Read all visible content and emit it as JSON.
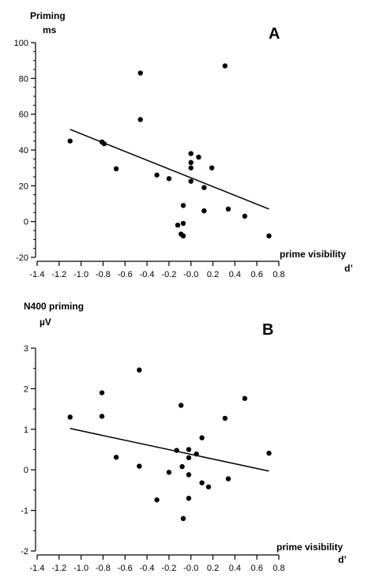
{
  "chart_data": [
    {
      "type": "scatter",
      "panel": "A",
      "ylabel_line1": "Priming",
      "ylabel_line2": "ms",
      "xlabel_line1": "prime visibility",
      "xlabel_line2": "d’",
      "xlim": [
        -1.4,
        0.8
      ],
      "ylim": [
        -20,
        100
      ],
      "xticks": [
        -1.4,
        -1.2,
        -1.0,
        -0.8,
        -0.6,
        -0.4,
        -0.2,
        0.0,
        0.2,
        0.4,
        0.6,
        0.8
      ],
      "xtick_labels": [
        "-1.4",
        "-1.2",
        "-1.0",
        "-0.8",
        "-0.6",
        "-0.4",
        "-0.2",
        "-0.0",
        "0.2",
        "0.4",
        "0.6",
        "0.8"
      ],
      "yticks": [
        -20,
        0,
        20,
        40,
        60,
        80,
        100
      ],
      "ytick_labels": [
        "-20",
        "0",
        "20",
        "40",
        "60",
        "80",
        "100"
      ],
      "y_minor_step": 5,
      "points": [
        {
          "x": -1.1,
          "y": 45
        },
        {
          "x": -0.81,
          "y": 44.5
        },
        {
          "x": -0.79,
          "y": 43.5
        },
        {
          "x": -0.68,
          "y": 29.5
        },
        {
          "x": -0.46,
          "y": 83
        },
        {
          "x": -0.46,
          "y": 57
        },
        {
          "x": -0.31,
          "y": 26
        },
        {
          "x": -0.2,
          "y": 24
        },
        {
          "x": -0.12,
          "y": -2
        },
        {
          "x": -0.09,
          "y": -7
        },
        {
          "x": -0.07,
          "y": 9
        },
        {
          "x": -0.07,
          "y": -1
        },
        {
          "x": -0.07,
          "y": -8
        },
        {
          "x": 0.0,
          "y": 38
        },
        {
          "x": 0.0,
          "y": 33
        },
        {
          "x": 0.0,
          "y": 30
        },
        {
          "x": 0.0,
          "y": 22.5
        },
        {
          "x": 0.07,
          "y": 36
        },
        {
          "x": 0.12,
          "y": 19
        },
        {
          "x": 0.12,
          "y": 6
        },
        {
          "x": 0.19,
          "y": 30
        },
        {
          "x": 0.31,
          "y": 87
        },
        {
          "x": 0.34,
          "y": 7
        },
        {
          "x": 0.49,
          "y": 3
        },
        {
          "x": 0.71,
          "y": -8
        }
      ],
      "fit_line": [
        {
          "x": -1.1,
          "y": 51.5
        },
        {
          "x": 0.71,
          "y": 7
        }
      ]
    },
    {
      "type": "scatter",
      "panel": "B",
      "ylabel_line1": "N400 priming",
      "ylabel_line2": "µV",
      "xlabel_line1": "prime visibility",
      "xlabel_line2": "d’",
      "xlim": [
        -1.4,
        0.8
      ],
      "ylim": [
        -2,
        3
      ],
      "xticks": [
        -1.4,
        -1.2,
        -1.0,
        -0.8,
        -0.6,
        -0.4,
        -0.2,
        0.0,
        0.2,
        0.4,
        0.6,
        0.8
      ],
      "xtick_labels": [
        "-1.4",
        "-1.2",
        "-1.0",
        "-0.8",
        "-0.6",
        "-0.4",
        "-0.2",
        "-0.0",
        "0.2",
        "0.4",
        "0.6",
        "0.8"
      ],
      "yticks": [
        -2,
        -1,
        0,
        1,
        2,
        3
      ],
      "ytick_labels": [
        "-2",
        "-1",
        "0",
        "1",
        "2",
        "3"
      ],
      "y_minor_step": 0.5,
      "points": [
        {
          "x": -1.1,
          "y": 1.3
        },
        {
          "x": -0.81,
          "y": 1.9
        },
        {
          "x": -0.81,
          "y": 1.32
        },
        {
          "x": -0.68,
          "y": 0.31
        },
        {
          "x": -0.47,
          "y": 2.46
        },
        {
          "x": -0.47,
          "y": 0.09
        },
        {
          "x": -0.31,
          "y": -0.74
        },
        {
          "x": -0.2,
          "y": -0.06
        },
        {
          "x": -0.13,
          "y": 0.48
        },
        {
          "x": -0.09,
          "y": 1.59
        },
        {
          "x": -0.08,
          "y": 0.08
        },
        {
          "x": -0.07,
          "y": -1.2
        },
        {
          "x": -0.02,
          "y": 0.5
        },
        {
          "x": -0.02,
          "y": 0.3
        },
        {
          "x": -0.02,
          "y": -0.12
        },
        {
          "x": -0.02,
          "y": -0.7
        },
        {
          "x": 0.05,
          "y": 0.39
        },
        {
          "x": 0.1,
          "y": 0.79
        },
        {
          "x": 0.1,
          "y": -0.32
        },
        {
          "x": 0.16,
          "y": -0.42
        },
        {
          "x": 0.31,
          "y": 1.27
        },
        {
          "x": 0.34,
          "y": -0.22
        },
        {
          "x": 0.49,
          "y": 1.76
        },
        {
          "x": 0.71,
          "y": 0.41
        }
      ],
      "fit_line": [
        {
          "x": -1.1,
          "y": 1.02
        },
        {
          "x": 0.71,
          "y": -0.03
        }
      ]
    }
  ]
}
